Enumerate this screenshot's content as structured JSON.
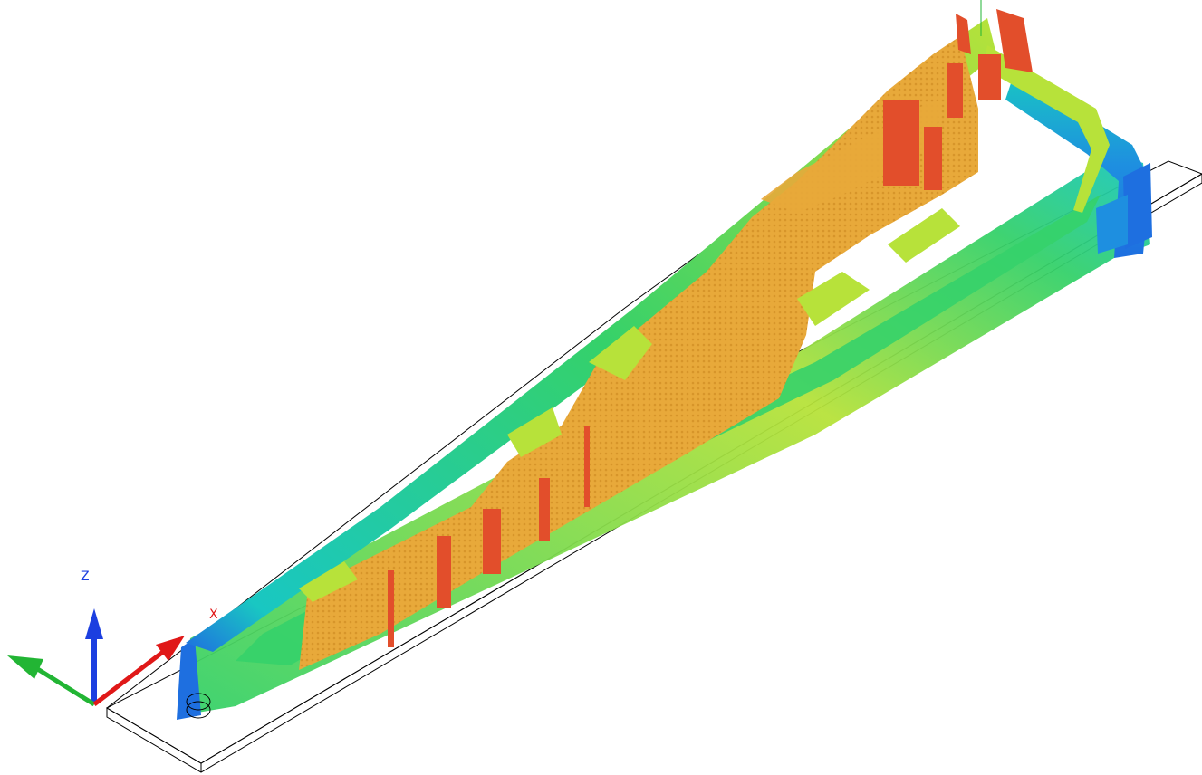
{
  "viewport": {
    "background": "#ffffff",
    "part_colors": {
      "low": "#1e6fe0",
      "cyan": "#19c7c2",
      "mid": "#35d16a",
      "lime": "#b7e23a",
      "high": "#e8a93a",
      "peak": "#e24e2b"
    },
    "stock_outline_color": "#000000"
  },
  "triad": {
    "x_label": "X",
    "y_label": "",
    "z_label": "Z",
    "x_color": "#e01818",
    "y_color": "#22b534",
    "z_color": "#1c3fe0",
    "x_icon": "x-axis-arrow-icon",
    "y_icon": "y-axis-arrow-icon",
    "z_icon": "z-axis-arrow-icon"
  }
}
